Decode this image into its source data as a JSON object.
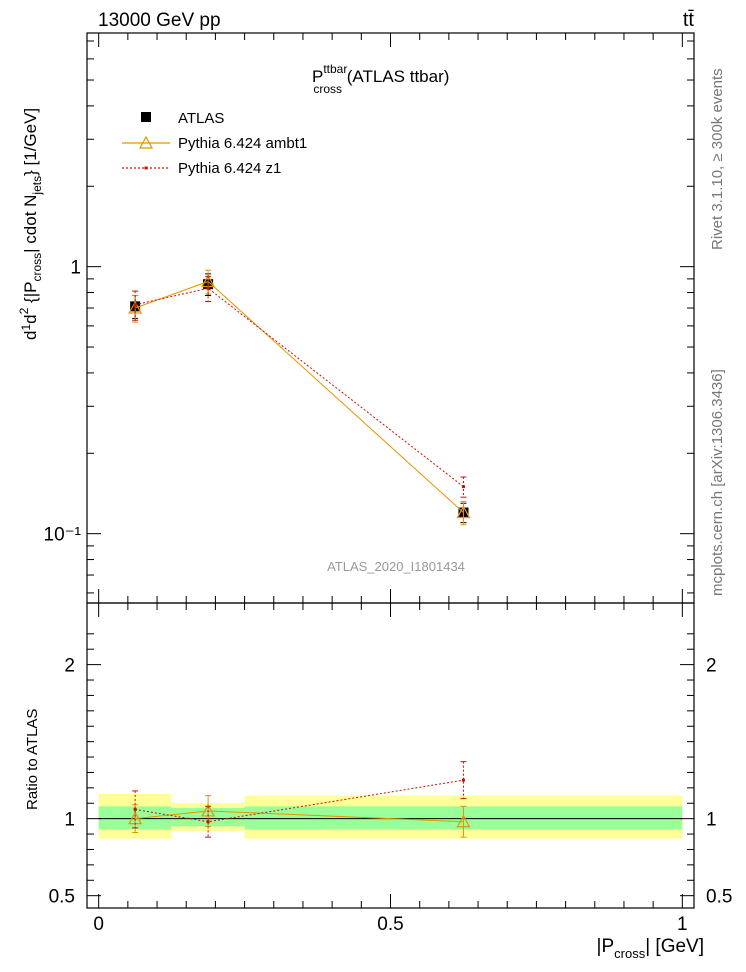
{
  "header": {
    "energy_label": "13000 GeV pp",
    "process_label": "tt̄"
  },
  "side_labels": {
    "rivet": "Rivet 3.1.10, ≥ 300k events",
    "mcplots": "mcplots.cern.ch [arXiv:1306.3436]"
  },
  "plot_title": {
    "main": "P",
    "sup": "ttbar",
    "sub": "cross",
    "rest": " (ATLAS ttbar)"
  },
  "analysis_id": "ATLAS_2020_I1801434",
  "legend": {
    "atlas": "ATLAS",
    "ambt1": "Pythia 6.424 ambt1",
    "z1": "Pythia 6.424 z1"
  },
  "ratio_ylabel": "Ratio to ATLAS",
  "x_axis": {
    "label_main": "|P",
    "label_sub": "cross",
    "label_rest": "| [GeV]",
    "ticks": [
      {
        "value": 0,
        "label": "0"
      },
      {
        "value": 0.5,
        "label": "0.5"
      },
      {
        "value": 1,
        "label": "1"
      }
    ]
  },
  "colors": {
    "atlas": "#000000",
    "ambt1": "#e69500",
    "z1": "#cc1100",
    "band_inner": "#99ff99",
    "band_outer": "#ffff99"
  },
  "chart_data": [
    {
      "type": "line",
      "panel": "main",
      "y_scale": "log",
      "xlim": [
        -0.02,
        1.02
      ],
      "ylim": [
        0.055,
        7.5
      ],
      "y_ticks": [
        {
          "value": 0.1,
          "label": "10⁻¹"
        },
        {
          "value": 1,
          "label": "1"
        }
      ],
      "series": [
        {
          "name": "ATLAS",
          "x": [
            0.0625,
            0.1875,
            0.625
          ],
          "y": [
            0.71,
            0.86,
            0.12
          ],
          "yerr": [
            0.07,
            0.08,
            0.01
          ]
        },
        {
          "name": "Pythia 6.424 ambt1",
          "x": [
            0.0625,
            0.1875,
            0.625
          ],
          "y": [
            0.7,
            0.88,
            0.12
          ],
          "yerr": [
            0.08,
            0.09,
            0.012
          ]
        },
        {
          "name": "Pythia 6.424 z1",
          "x": [
            0.0625,
            0.1875,
            0.625
          ],
          "y": [
            0.72,
            0.83,
            0.15
          ],
          "yerr": [
            0.09,
            0.09,
            0.013
          ]
        }
      ]
    },
    {
      "type": "line",
      "panel": "ratio",
      "ylabel": "Ratio to ATLAS",
      "xlim": [
        -0.02,
        1.02
      ],
      "ylim": [
        0.42,
        2.4
      ],
      "y_ticks": [
        {
          "value": 0.5,
          "label": "0.5"
        },
        {
          "value": 1,
          "label": "1"
        },
        {
          "value": 2,
          "label": "2"
        }
      ],
      "bands": [
        {
          "x_low": 0.0,
          "x_high": 0.125,
          "inner": [
            0.93,
            1.08
          ],
          "outer": [
            0.87,
            1.16
          ]
        },
        {
          "x_low": 0.125,
          "x_high": 0.25,
          "inner": [
            0.95,
            1.07
          ],
          "outer": [
            0.92,
            1.1
          ]
        },
        {
          "x_low": 0.25,
          "x_high": 1.0,
          "inner": [
            0.93,
            1.08
          ],
          "outer": [
            0.87,
            1.15
          ]
        }
      ],
      "series": [
        {
          "name": "Pythia 6.424 ambt1",
          "x": [
            0.0625,
            0.1875,
            0.625
          ],
          "y": [
            1.0,
            1.05,
            0.98
          ],
          "yerr": [
            0.09,
            0.1,
            0.1
          ]
        },
        {
          "name": "Pythia 6.424 z1",
          "x": [
            0.0625,
            0.1875,
            0.625
          ],
          "y": [
            1.06,
            0.98,
            1.25
          ],
          "yerr": [
            0.12,
            0.1,
            0.12
          ]
        }
      ]
    }
  ]
}
